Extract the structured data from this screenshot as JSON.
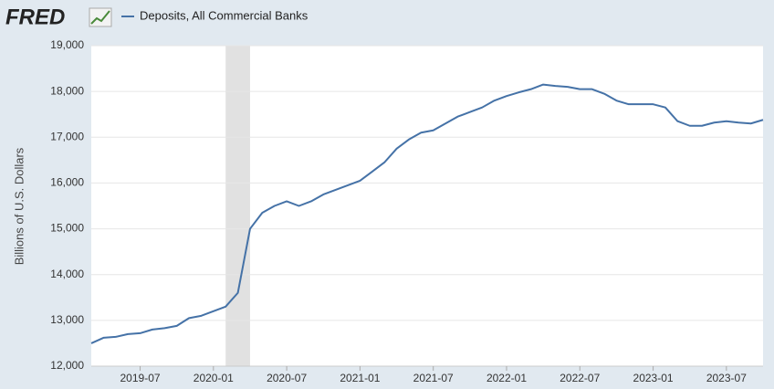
{
  "header": {
    "logo": "FRED"
  },
  "chart_data": {
    "type": "line",
    "y_label": "Billions of U.S. Dollars",
    "x": [
      "2019-03",
      "2019-04",
      "2019-05",
      "2019-06",
      "2019-07",
      "2019-08",
      "2019-09",
      "2019-10",
      "2019-11",
      "2019-12",
      "2020-01",
      "2020-02",
      "2020-03",
      "2020-04",
      "2020-05",
      "2020-06",
      "2020-07",
      "2020-08",
      "2020-09",
      "2020-10",
      "2020-11",
      "2020-12",
      "2021-01",
      "2021-02",
      "2021-03",
      "2021-04",
      "2021-05",
      "2021-06",
      "2021-07",
      "2021-08",
      "2021-09",
      "2021-10",
      "2021-11",
      "2021-12",
      "2022-01",
      "2022-02",
      "2022-03",
      "2022-04",
      "2022-05",
      "2022-06",
      "2022-07",
      "2022-08",
      "2022-09",
      "2022-10",
      "2022-11",
      "2022-12",
      "2023-01",
      "2023-02",
      "2023-03",
      "2023-04",
      "2023-05",
      "2023-06",
      "2023-07",
      "2023-08",
      "2023-09",
      "2023-10"
    ],
    "series": [
      {
        "name": "Deposits, All Commercial Banks",
        "color": "#4572a7",
        "values": [
          12500,
          12620,
          12640,
          12700,
          12720,
          12800,
          12830,
          12880,
          13050,
          13100,
          13200,
          13300,
          13600,
          15000,
          15350,
          15500,
          15600,
          15500,
          15600,
          15750,
          15850,
          15950,
          16050,
          16250,
          16450,
          16750,
          16950,
          17100,
          17150,
          17300,
          17450,
          17550,
          17650,
          17800,
          17900,
          17980,
          18050,
          18150,
          18120,
          18100,
          18050,
          18050,
          17950,
          17800,
          17720,
          17720,
          17720,
          17650,
          17350,
          17250,
          17250,
          17320,
          17350,
          17320,
          17300,
          17380
        ]
      }
    ],
    "recessions": [
      {
        "start": "2020-02",
        "end": "2020-04"
      }
    ],
    "xlim": [
      "2019-03",
      "2023-10"
    ],
    "xticks": [
      "2019-07",
      "2020-01",
      "2020-07",
      "2021-01",
      "2021-07",
      "2022-01",
      "2022-07",
      "2023-01",
      "2023-07"
    ],
    "ylim": [
      12000,
      19000
    ],
    "yticks": [
      {
        "value": 12000,
        "label": "12,000"
      },
      {
        "value": 13000,
        "label": "13,000"
      },
      {
        "value": 14000,
        "label": "14,000"
      },
      {
        "value": 15000,
        "label": "15,000"
      },
      {
        "value": 16000,
        "label": "16,000"
      },
      {
        "value": 17000,
        "label": "17,000"
      },
      {
        "value": 18000,
        "label": "18,000"
      },
      {
        "value": 19000,
        "label": "19,000"
      }
    ],
    "grid": true
  }
}
